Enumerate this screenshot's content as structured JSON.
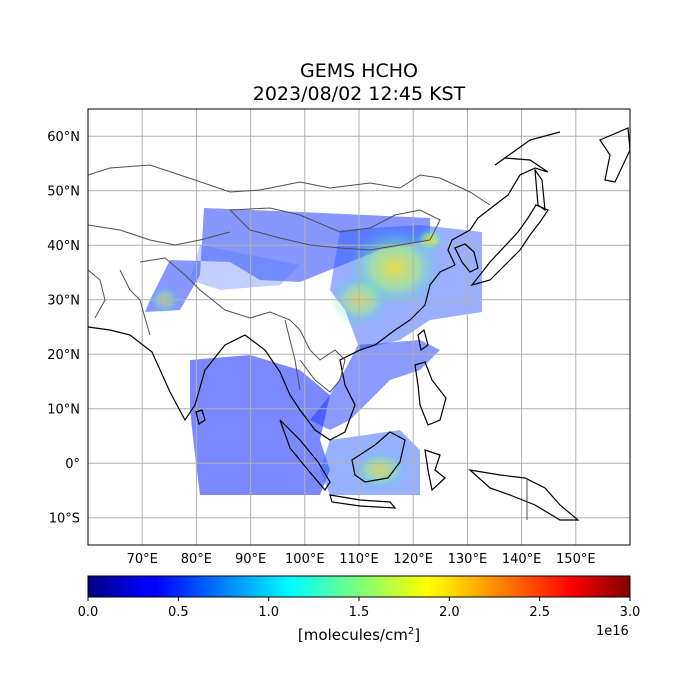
{
  "title": {
    "line1": "GEMS HCHO",
    "line2": "2023/08/02 12:45 KST"
  },
  "map": {
    "lon_range": [
      60,
      160
    ],
    "lat_range": [
      -15,
      65
    ],
    "lon_ticks": [
      {
        "value": 70,
        "label": "70°E"
      },
      {
        "value": 80,
        "label": "80°E"
      },
      {
        "value": 90,
        "label": "90°E"
      },
      {
        "value": 100,
        "label": "100°E"
      },
      {
        "value": 110,
        "label": "110°E"
      },
      {
        "value": 120,
        "label": "120°E"
      },
      {
        "value": 130,
        "label": "130°E"
      },
      {
        "value": 140,
        "label": "140°E"
      },
      {
        "value": 150,
        "label": "150°E"
      }
    ],
    "lat_ticks": [
      {
        "value": 60,
        "label": "60°N"
      },
      {
        "value": 50,
        "label": "50°N"
      },
      {
        "value": 40,
        "label": "40°N"
      },
      {
        "value": 30,
        "label": "30°N"
      },
      {
        "value": 20,
        "label": "20°N"
      },
      {
        "value": 10,
        "label": "10°N"
      },
      {
        "value": 0,
        "label": "0°"
      },
      {
        "value": -10,
        "label": "10°S"
      }
    ],
    "grid": true
  },
  "colorbar": {
    "colormap": "jet",
    "min": 0.0,
    "max": 3.0,
    "ticks": [
      "0.0",
      "0.5",
      "1.0",
      "1.5",
      "2.0",
      "2.5",
      "3.0"
    ],
    "offset_label": "1e16",
    "label": "[molecules/cm",
    "label_sup": "2",
    "label_end": "]"
  }
}
